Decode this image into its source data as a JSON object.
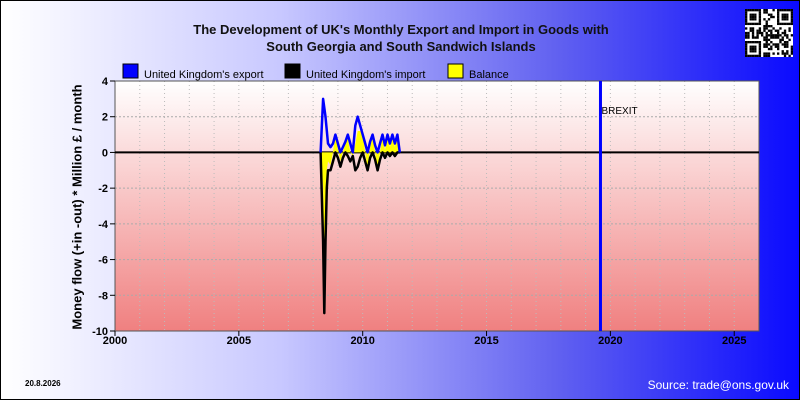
{
  "title_line1": "The Development of UK's Monthly Export and Import in Goods with",
  "title_line2": "South Georgia and South Sandwich Islands",
  "date_stamp": "20.8.2026",
  "source": "Source: trade@ons.gov.uk",
  "qr_icon": "qr-code-icon",
  "chart_data": {
    "type": "line",
    "xlim": [
      2000,
      2026
    ],
    "ylim": [
      -10,
      4
    ],
    "x_ticks": [
      2000,
      2005,
      2010,
      2015,
      2020,
      2025
    ],
    "y_ticks": [
      4,
      2,
      0,
      -2,
      -4,
      -6,
      -8,
      -10
    ],
    "ylabel": "Money flow (+in -out) * Million £ / month",
    "xlabel": "",
    "grid": true,
    "legend_position": "top-left",
    "colors": {
      "export": "#0000ff",
      "import": "#000000",
      "balance": "#ffff00",
      "brexit_line": "#0000ff",
      "zero_line": "#000000"
    },
    "annotations": [
      {
        "text": "BREXIT",
        "x": 2019.6
      }
    ],
    "legend": [
      {
        "key": "export",
        "label": "United Kingdom's export"
      },
      {
        "key": "import",
        "label": "United Kingdom's import"
      },
      {
        "key": "balance",
        "label": "Balance"
      }
    ],
    "series": [
      {
        "name": "United Kingdom's export",
        "key": "export",
        "x": [
          2008.3,
          2008.4,
          2008.5,
          2008.6,
          2008.7,
          2008.8,
          2008.9,
          2009.0,
          2009.1,
          2009.2,
          2009.3,
          2009.4,
          2009.5,
          2009.6,
          2009.7,
          2009.8,
          2009.9,
          2010.0,
          2010.1,
          2010.2,
          2010.3,
          2010.4,
          2010.5,
          2010.6,
          2010.7,
          2010.8,
          2010.9,
          2011.0,
          2011.1,
          2011.2,
          2011.3,
          2011.4,
          2011.5
        ],
        "y": [
          0,
          3,
          2,
          0.5,
          0.3,
          0.5,
          1,
          0.5,
          0,
          0.3,
          0.6,
          1,
          0.5,
          0,
          1.5,
          2,
          1.5,
          1,
          0.5,
          0,
          0.6,
          1,
          0.4,
          0,
          0.5,
          1,
          0.4,
          1,
          0.5,
          1,
          0.5,
          1,
          0
        ]
      },
      {
        "name": "United Kingdom's import",
        "key": "import",
        "x": [
          2008.3,
          2008.4,
          2008.45,
          2008.5,
          2008.55,
          2008.6,
          2008.7,
          2008.8,
          2008.9,
          2009.0,
          2009.1,
          2009.2,
          2009.3,
          2009.4,
          2009.5,
          2009.6,
          2009.7,
          2009.8,
          2009.9,
          2010.0,
          2010.1,
          2010.2,
          2010.3,
          2010.4,
          2010.5,
          2010.6,
          2010.7,
          2010.8,
          2010.9,
          2011.0,
          2011.1,
          2011.2,
          2011.3,
          2011.4,
          2011.5
        ],
        "y": [
          0,
          -5,
          -9,
          -5,
          -2,
          -1,
          -1,
          -0.5,
          0,
          -0.3,
          -0.8,
          -0.3,
          0,
          -0.2,
          -0.5,
          -0.2,
          -1,
          -0.8,
          -0.3,
          0,
          -0.5,
          -1,
          -0.3,
          0,
          -0.4,
          -1,
          -0.4,
          0,
          -0.3,
          0,
          -0.2,
          0,
          -0.2,
          0,
          0
        ]
      },
      {
        "name": "Balance",
        "key": "balance",
        "x": [
          2008.3,
          2008.4,
          2008.45,
          2008.5,
          2008.55,
          2008.6,
          2008.7,
          2008.8,
          2008.9,
          2009.0,
          2009.1,
          2009.2,
          2009.3,
          2009.4,
          2009.5,
          2009.6,
          2009.7,
          2009.8,
          2009.9,
          2010.0,
          2010.1,
          2010.2,
          2010.3,
          2010.4,
          2010.5,
          2010.6,
          2010.7,
          2010.8,
          2010.9,
          2011.0,
          2011.1,
          2011.2,
          2011.3,
          2011.4,
          2011.5
        ],
        "y": [
          0,
          -2,
          -6,
          -3,
          -1,
          -0.5,
          -0.7,
          0,
          1,
          0.2,
          -0.5,
          0,
          0.6,
          0.8,
          0,
          -0.2,
          0.5,
          1.2,
          1.2,
          1,
          0,
          -1,
          0.3,
          1,
          0,
          -1,
          0,
          1,
          0.1,
          1,
          0.3,
          1,
          0.3,
          1,
          0
        ]
      }
    ]
  }
}
